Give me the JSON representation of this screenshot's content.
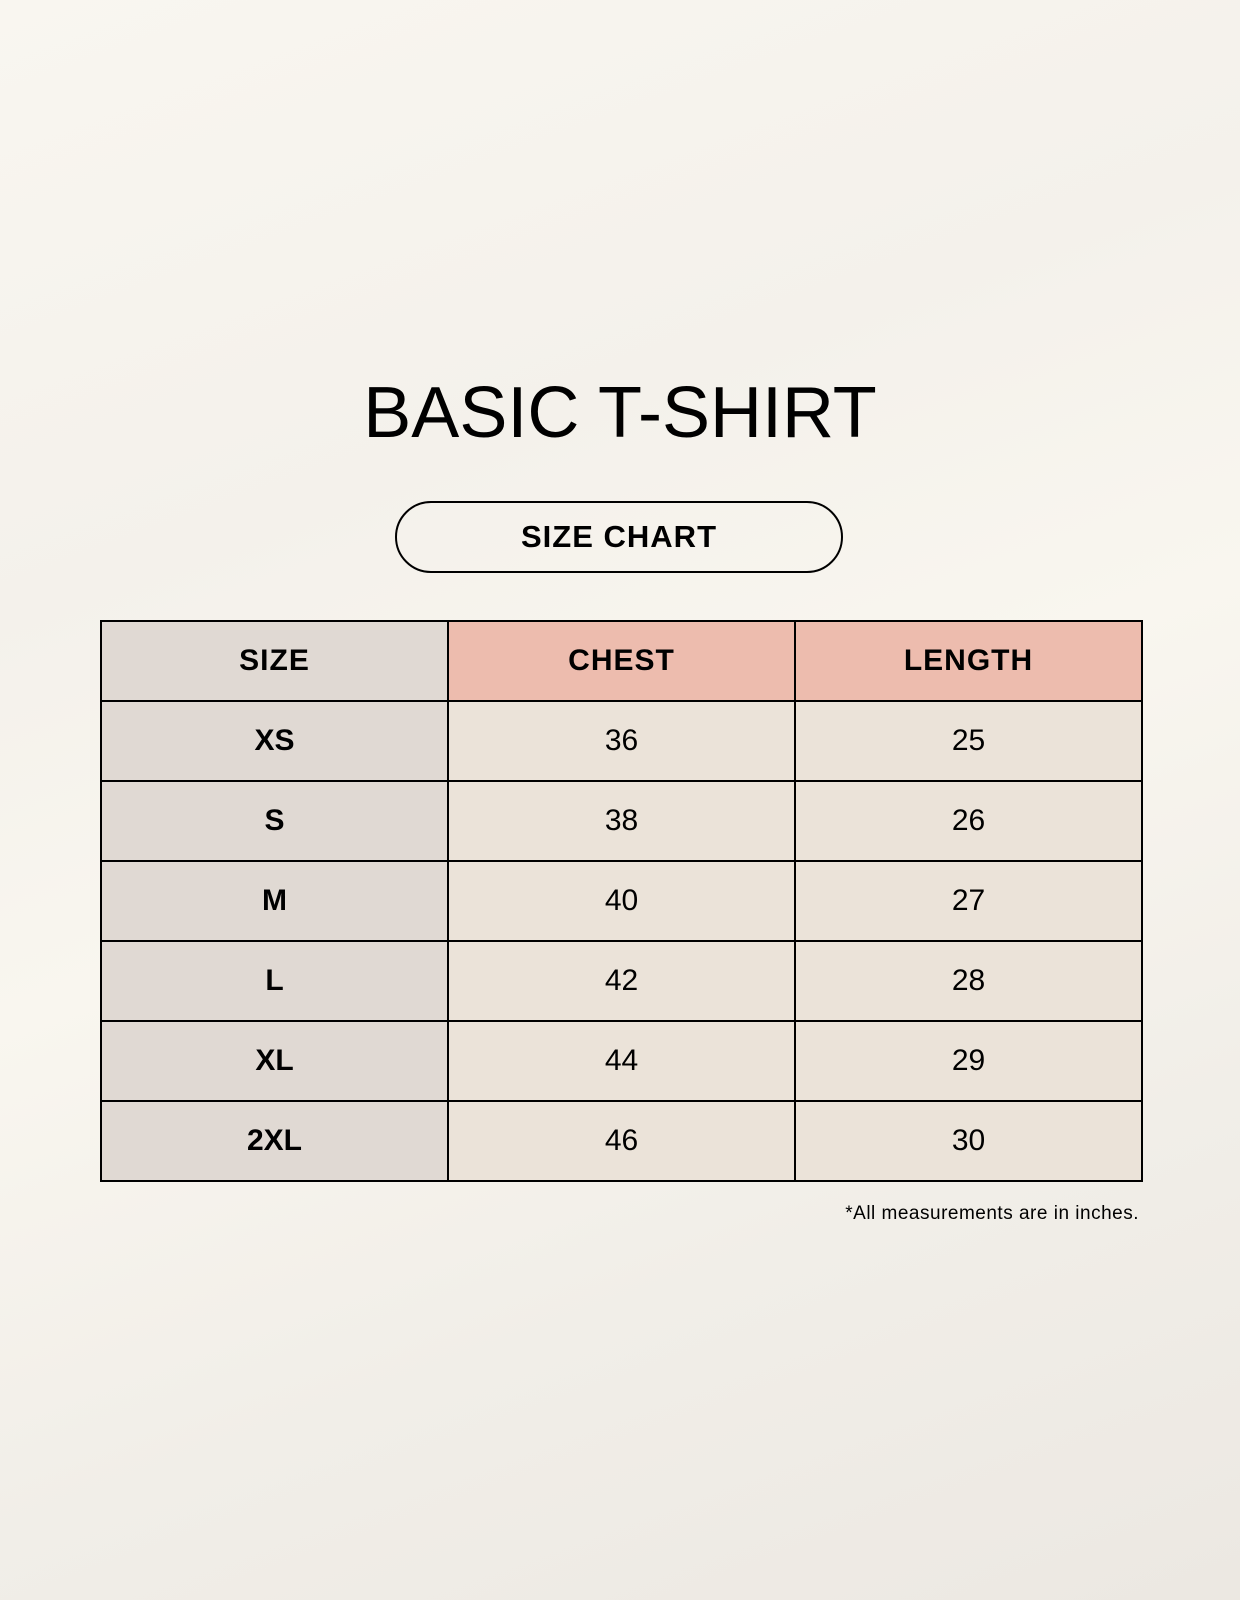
{
  "title": "BASIC T-SHIRT",
  "subtitle": "SIZE CHART",
  "table": {
    "headers": [
      "SIZE",
      "CHEST",
      "LENGTH"
    ],
    "rows": [
      [
        "XS",
        "36",
        "25"
      ],
      [
        "S",
        "38",
        "26"
      ],
      [
        "M",
        "40",
        "27"
      ],
      [
        "L",
        "42",
        "28"
      ],
      [
        "XL",
        "44",
        "29"
      ],
      [
        "2XL",
        "46",
        "30"
      ]
    ]
  },
  "footnote": "*All measurements are in inches.",
  "colors": {
    "size_column": "#e0d9d3",
    "header_accent": "#edbcae",
    "value_cells": "#ebe3d9"
  }
}
